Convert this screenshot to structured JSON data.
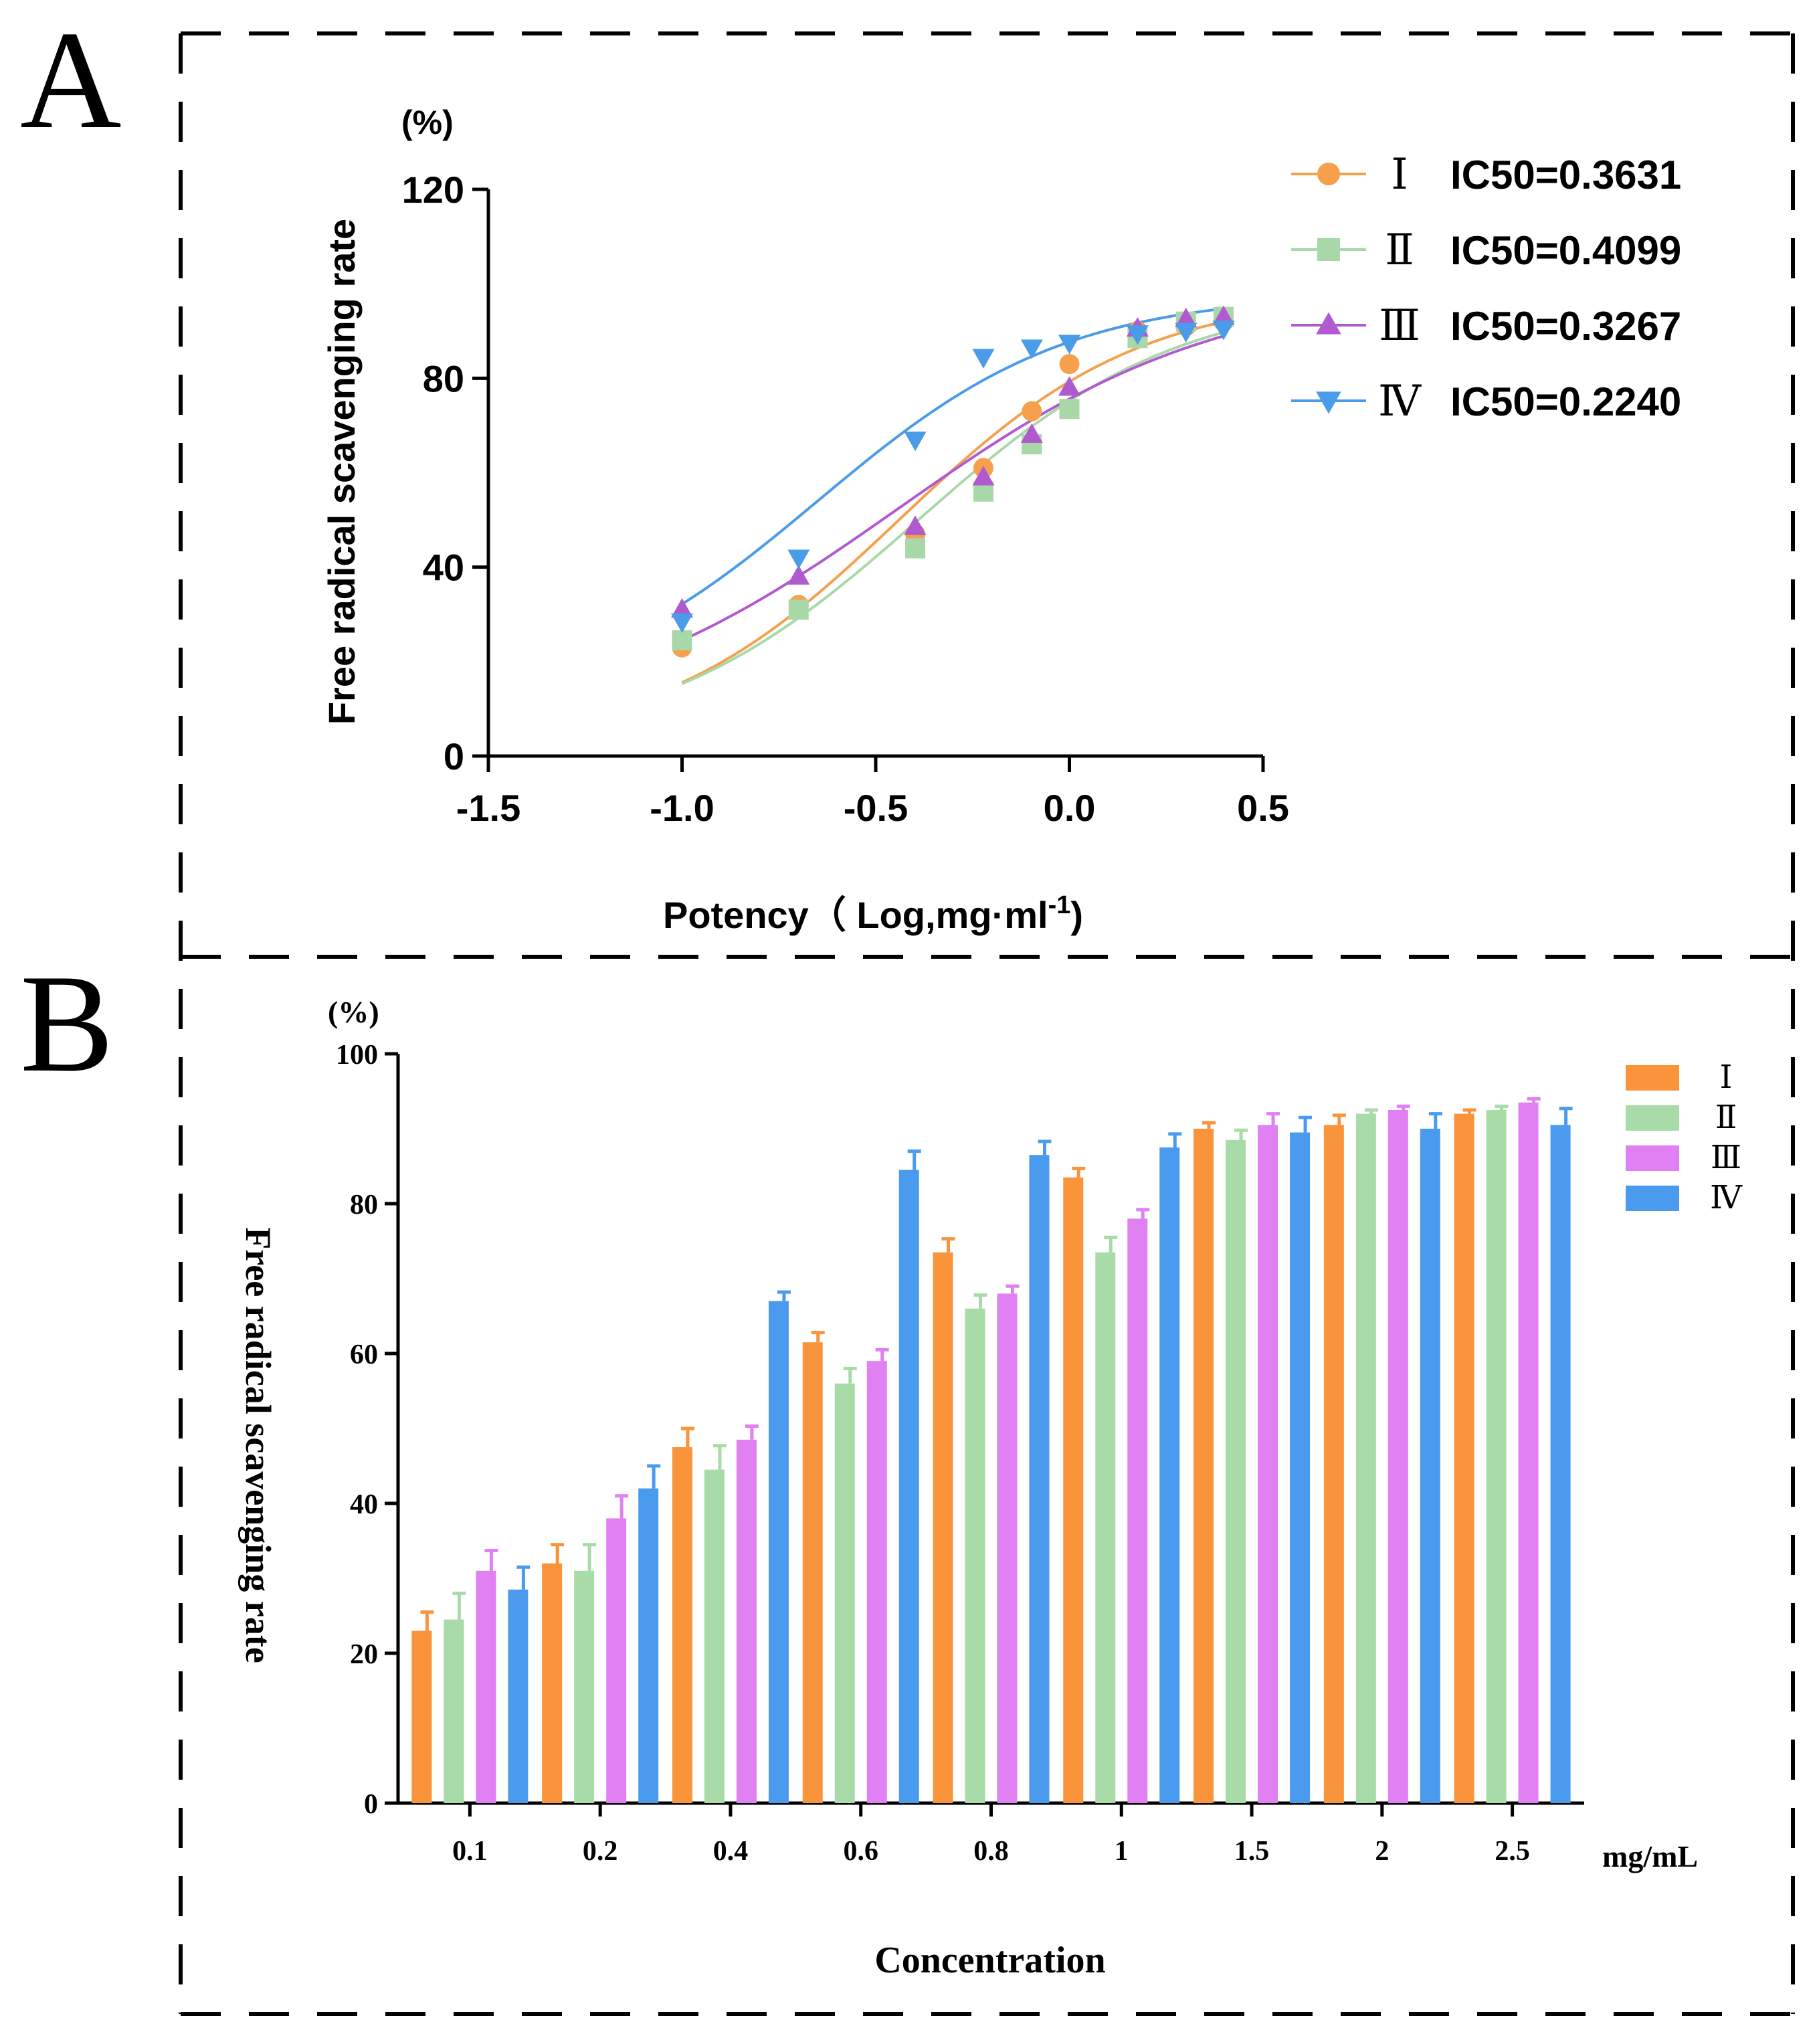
{
  "panels": {
    "a": {
      "letter": "A"
    },
    "b": {
      "letter": "B"
    }
  },
  "chart_data": [
    {
      "type": "scatter",
      "panel": "A",
      "unit_label": "(%)",
      "ylabel": "Free radical scavenging rate",
      "xlabel_main": "Potency（ Log,mg·ml",
      "xlabel_sup": "-1",
      "xlabel_close": ")",
      "xlim": [
        -1.5,
        0.5
      ],
      "ylim": [
        0,
        120
      ],
      "xticks": [
        -1.5,
        -1.0,
        -0.5,
        0.0,
        0.5
      ],
      "xtick_labels": [
        "-1.5",
        "-1.0",
        "-0.5",
        "0.0",
        "0.5"
      ],
      "yticks": [
        0,
        40,
        80,
        120
      ],
      "ytick_labels": [
        "0",
        "40",
        "80",
        "120"
      ],
      "fit": "four-parameter logistic curve per series",
      "legend_position": "top-right",
      "series": [
        {
          "name": "Ⅰ",
          "marker": "circle",
          "color": "#F6A04D",
          "ic50_label": "IC50=0.3631",
          "x": [
            -1.0,
            -0.699,
            -0.398,
            -0.222,
            -0.097,
            0.0,
            0.176,
            0.301,
            0.398
          ],
          "y": [
            23,
            32,
            47,
            61,
            73,
            83,
            90,
            91,
            92
          ],
          "curve": {
            "bottom": 2,
            "top": 98,
            "hill": 1.4,
            "logec50": -0.44
          }
        },
        {
          "name": "Ⅱ",
          "marker": "square",
          "color": "#A8D8A8",
          "ic50_label": "IC50=0.4099",
          "x": [
            -1.0,
            -0.699,
            -0.398,
            -0.222,
            -0.097,
            0.0,
            0.176,
            0.301,
            0.398
          ],
          "y": [
            24.5,
            31,
            44,
            56,
            66,
            73.5,
            88.5,
            92,
            93
          ],
          "curve": {
            "bottom": 2,
            "top": 98,
            "hill": 1.3,
            "logec50": -0.39
          }
        },
        {
          "name": "Ⅲ",
          "marker": "triangle-up",
          "color": "#B05ACF",
          "ic50_label": "IC50=0.3267",
          "x": [
            -1.0,
            -0.699,
            -0.398,
            -0.222,
            -0.097,
            0.0,
            0.176,
            0.301,
            0.398
          ],
          "y": [
            31,
            38,
            48.5,
            59,
            68,
            78,
            90.5,
            92.5,
            93
          ],
          "curve": {
            "bottom": 5,
            "top": 100,
            "hill": 1.05,
            "logec50": -0.44
          }
        },
        {
          "name": "Ⅳ",
          "marker": "triangle-down",
          "color": "#4A9BE8",
          "ic50_label": "IC50=0.2240",
          "x": [
            -1.0,
            -0.699,
            -0.398,
            -0.222,
            -0.097,
            0.0,
            0.176,
            0.301,
            0.398
          ],
          "y": [
            28.5,
            42,
            67,
            84.5,
            86.5,
            87.5,
            89.5,
            90,
            90.5
          ],
          "curve": {
            "bottom": 10,
            "top": 98,
            "hill": 1.35,
            "logec50": -0.65
          }
        }
      ]
    },
    {
      "type": "bar",
      "panel": "B",
      "unit_label": "(%)",
      "ylabel": "Free radical scavenging rate",
      "xlabel": "Concentration",
      "x_unit": "mg/mL",
      "ylim": [
        0,
        100
      ],
      "yticks": [
        0,
        20,
        40,
        60,
        80,
        100
      ],
      "ytick_labels": [
        "0",
        "20",
        "40",
        "60",
        "80",
        "100"
      ],
      "categories": [
        "0.1",
        "0.2",
        "0.4",
        "0.6",
        "0.8",
        "1",
        "1.5",
        "2",
        "2.5"
      ],
      "legend_position": "top-right",
      "series": [
        {
          "name": "Ⅰ",
          "color": "#F9943B",
          "values": [
            23,
            32,
            47.5,
            61.5,
            73.5,
            83.5,
            90,
            90.5,
            92
          ],
          "errors": [
            2.5,
            2.5,
            2.5,
            1.3,
            1.8,
            1.2,
            0.8,
            1.3,
            0.5
          ]
        },
        {
          "name": "Ⅱ",
          "color": "#A8DBA8",
          "values": [
            24.5,
            31,
            44.5,
            56,
            66,
            73.5,
            88.5,
            92,
            92.5
          ],
          "errors": [
            3.5,
            3.5,
            3.2,
            2.0,
            1.8,
            2.0,
            1.3,
            0.5,
            0.5
          ]
        },
        {
          "name": "Ⅲ",
          "color": "#E080F2",
          "values": [
            31,
            38,
            48.5,
            59,
            68,
            78,
            90.5,
            92.5,
            93.5
          ],
          "errors": [
            2.7,
            3.0,
            1.8,
            1.5,
            1.0,
            1.2,
            1.5,
            0.5,
            0.5
          ]
        },
        {
          "name": "Ⅳ",
          "color": "#4A9BEE",
          "values": [
            28.5,
            42,
            67,
            84.5,
            86.5,
            87.5,
            89.5,
            90,
            90.5
          ],
          "errors": [
            3.0,
            3.0,
            1.2,
            2.5,
            1.8,
            1.8,
            2.0,
            2.0,
            2.2
          ]
        }
      ]
    }
  ]
}
